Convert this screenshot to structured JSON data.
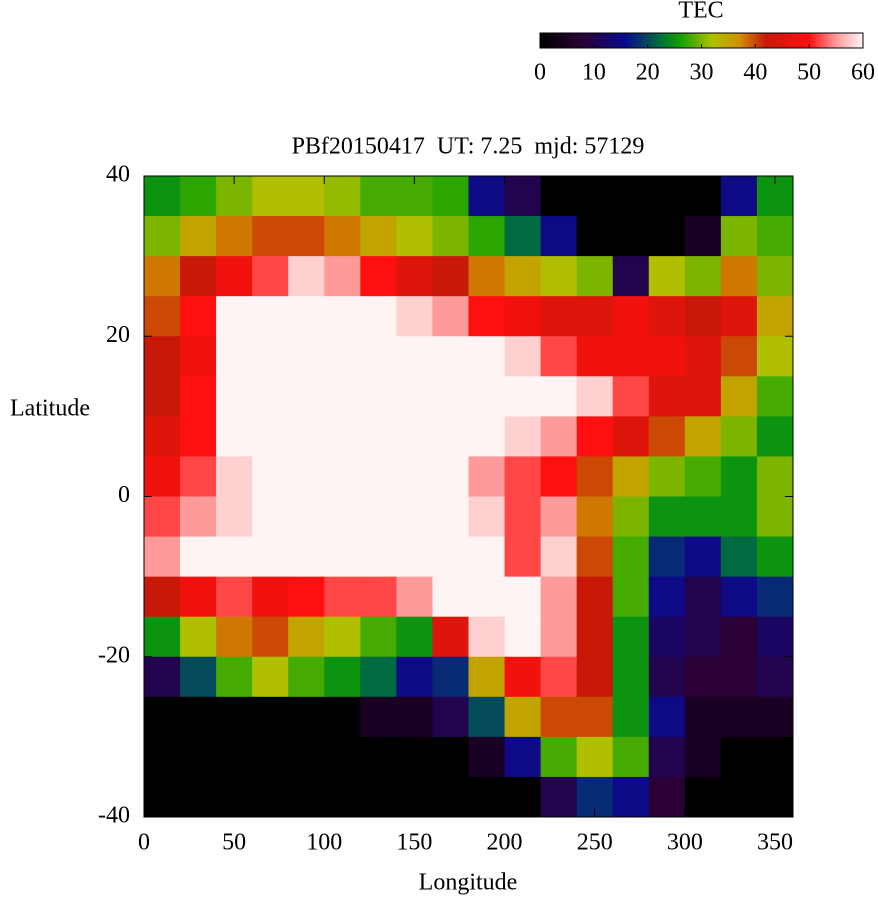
{
  "chart_data": {
    "type": "heatmap",
    "title": "PBf20150417  UT: 7.25  mjd: 57129",
    "xlabel": "Longitude",
    "ylabel": "Latitude",
    "colorbar_label": "TEC",
    "xlim": [
      0,
      360
    ],
    "ylim": [
      -40,
      40
    ],
    "xticks": [
      0,
      50,
      100,
      150,
      200,
      250,
      300,
      350
    ],
    "yticks": [
      -40,
      -20,
      0,
      20,
      40
    ],
    "clim": [
      0,
      60
    ],
    "cticks": [
      0,
      10,
      20,
      30,
      40,
      50,
      60
    ],
    "colormap": [
      {
        "value": 0,
        "color": "#000000"
      },
      {
        "value": 8,
        "color": "#2a0036"
      },
      {
        "value": 16,
        "color": "#0a0a90"
      },
      {
        "value": 22,
        "color": "#006a40"
      },
      {
        "value": 26,
        "color": "#10a000"
      },
      {
        "value": 32,
        "color": "#b0c000"
      },
      {
        "value": 37,
        "color": "#d09000"
      },
      {
        "value": 42,
        "color": "#c81808"
      },
      {
        "value": 50,
        "color": "#ff1010"
      },
      {
        "value": 55,
        "color": "#ff9a9a"
      },
      {
        "value": 60,
        "color": "#fff4f4"
      }
    ],
    "x": [
      10,
      30,
      50,
      70,
      90,
      110,
      130,
      150,
      170,
      190,
      210,
      230,
      250,
      270,
      290,
      310,
      330,
      350
    ],
    "y": [
      37.5,
      32.5,
      27.5,
      22.5,
      17.5,
      12.5,
      7.5,
      2.5,
      -2.5,
      -7.5,
      -12.5,
      -17.5,
      -22.5,
      -27.5,
      -32.5,
      -37.5
    ],
    "z": [
      [
        25,
        27,
        30,
        32,
        32,
        31,
        28,
        28,
        27,
        15,
        10,
        0,
        0,
        0,
        0,
        0,
        15,
        25
      ],
      [
        30,
        35,
        38,
        40,
        40,
        38,
        35,
        32,
        30,
        27,
        22,
        15,
        0,
        0,
        0,
        5,
        30,
        28
      ],
      [
        38,
        42,
        48,
        52,
        58,
        55,
        50,
        45,
        42,
        38,
        35,
        32,
        30,
        10,
        32,
        30,
        38,
        30
      ],
      [
        40,
        50,
        60,
        60,
        60,
        60,
        60,
        58,
        55,
        50,
        48,
        45,
        45,
        48,
        45,
        42,
        45,
        35
      ],
      [
        42,
        48,
        60,
        60,
        60,
        60,
        60,
        60,
        60,
        60,
        58,
        52,
        48,
        48,
        48,
        45,
        40,
        32
      ],
      [
        42,
        50,
        60,
        60,
        60,
        60,
        60,
        60,
        60,
        60,
        60,
        60,
        58,
        52,
        45,
        45,
        35,
        28
      ],
      [
        45,
        50,
        60,
        60,
        60,
        60,
        60,
        60,
        60,
        60,
        58,
        55,
        50,
        45,
        40,
        35,
        30,
        25
      ],
      [
        48,
        52,
        58,
        60,
        60,
        60,
        60,
        60,
        60,
        55,
        52,
        50,
        40,
        35,
        30,
        28,
        25,
        30
      ],
      [
        52,
        55,
        58,
        60,
        60,
        60,
        60,
        60,
        60,
        58,
        52,
        55,
        38,
        30,
        25,
        25,
        25,
        30
      ],
      [
        55,
        60,
        60,
        60,
        60,
        60,
        60,
        60,
        60,
        60,
        52,
        58,
        40,
        28,
        18,
        15,
        22,
        25
      ],
      [
        42,
        48,
        52,
        48,
        50,
        52,
        52,
        55,
        60,
        60,
        60,
        55,
        42,
        28,
        15,
        10,
        15,
        18
      ],
      [
        25,
        32,
        38,
        40,
        35,
        32,
        28,
        25,
        45,
        58,
        60,
        55,
        42,
        25,
        12,
        10,
        8,
        12
      ],
      [
        10,
        20,
        28,
        32,
        28,
        25,
        22,
        15,
        18,
        35,
        48,
        52,
        42,
        25,
        10,
        8,
        8,
        10
      ],
      [
        0,
        0,
        0,
        0,
        0,
        0,
        5,
        5,
        10,
        20,
        35,
        40,
        40,
        25,
        15,
        5,
        5,
        5
      ],
      [
        0,
        0,
        0,
        0,
        0,
        0,
        0,
        0,
        0,
        5,
        15,
        28,
        32,
        28,
        10,
        5,
        0,
        0
      ],
      [
        0,
        0,
        0,
        0,
        0,
        0,
        0,
        0,
        0,
        0,
        0,
        10,
        18,
        15,
        8,
        0,
        0,
        0
      ]
    ]
  }
}
